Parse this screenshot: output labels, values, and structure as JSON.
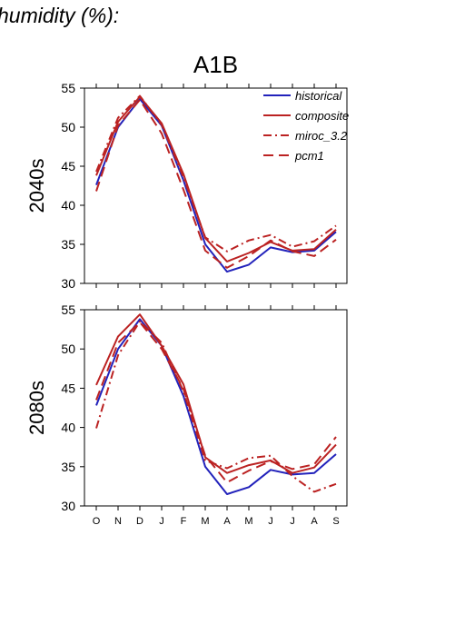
{
  "heading": "humidity (%):",
  "chart_data": {
    "type": "line",
    "title": "A1B",
    "months": [
      "O",
      "N",
      "D",
      "J",
      "F",
      "M",
      "A",
      "M",
      "J",
      "J",
      "A",
      "S"
    ],
    "ylim": [
      30,
      55
    ],
    "yticks": [
      30,
      35,
      40,
      45,
      50,
      55
    ],
    "legend": {
      "placement": "top-right"
    },
    "series_styles": [
      {
        "name": "historical",
        "color": "#2222bb",
        "dash": ""
      },
      {
        "name": "composite",
        "color": "#bb2222",
        "dash": ""
      },
      {
        "name": "miroc_3.2",
        "color": "#bb2222",
        "dash": "9,4,2,4"
      },
      {
        "name": "pcm1",
        "color": "#bb2222",
        "dash": "11,6"
      }
    ],
    "panels": [
      {
        "label": "2040s",
        "series": [
          {
            "name": "historical",
            "values": [
              42.6,
              50.0,
              53.6,
              50.2,
              43.2,
              35.0,
              31.5,
              32.4,
              34.6,
              34.0,
              34.2,
              36.6
            ]
          },
          {
            "name": "composite",
            "values": [
              43.8,
              50.7,
              53.9,
              50.5,
              44.0,
              35.8,
              32.8,
              33.9,
              35.3,
              34.2,
              34.4,
              36.9
            ]
          },
          {
            "name": "miroc_3.2",
            "values": [
              44.3,
              51.2,
              54.0,
              50.3,
              43.6,
              35.9,
              34.1,
              35.5,
              36.2,
              34.7,
              35.4,
              37.4
            ]
          },
          {
            "name": "pcm1",
            "values": [
              41.8,
              50.2,
              53.5,
              49.2,
              42.0,
              34.2,
              32.0,
              33.5,
              35.5,
              34.1,
              33.5,
              35.6
            ]
          }
        ]
      },
      {
        "label": "2080s",
        "series": [
          {
            "name": "historical",
            "values": [
              42.8,
              50.0,
              53.8,
              50.4,
              44.0,
              35.0,
              31.5,
              32.4,
              34.6,
              34.0,
              34.2,
              36.6
            ]
          },
          {
            "name": "composite",
            "values": [
              45.4,
              51.6,
              54.4,
              50.4,
              45.5,
              36.2,
              34.2,
              35.2,
              35.8,
              34.2,
              34.9,
              37.8
            ]
          },
          {
            "name": "miroc_3.2",
            "values": [
              39.9,
              49.2,
              53.5,
              50.8,
              44.6,
              35.8,
              34.8,
              36.1,
              36.4,
              33.8,
              31.8,
              32.8
            ]
          },
          {
            "name": "pcm1",
            "values": [
              43.5,
              50.8,
              53.4,
              50.0,
              44.9,
              36.4,
              33.0,
              34.5,
              35.7,
              34.7,
              35.3,
              38.8
            ]
          }
        ]
      }
    ]
  }
}
